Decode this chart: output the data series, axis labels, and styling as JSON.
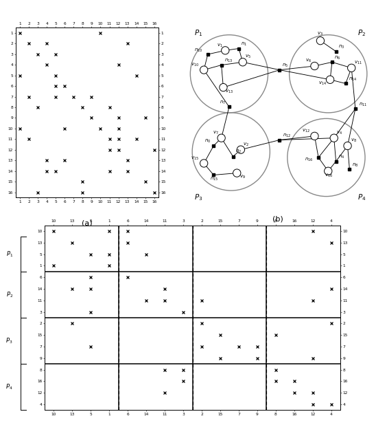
{
  "matrix_a_nonzeros": [
    [
      1,
      1
    ],
    [
      1,
      10
    ],
    [
      2,
      2
    ],
    [
      2,
      4
    ],
    [
      2,
      13
    ],
    [
      3,
      3
    ],
    [
      3,
      5
    ],
    [
      4,
      4
    ],
    [
      4,
      12
    ],
    [
      5,
      1
    ],
    [
      5,
      5
    ],
    [
      5,
      14
    ],
    [
      6,
      5
    ],
    [
      6,
      6
    ],
    [
      7,
      2
    ],
    [
      7,
      5
    ],
    [
      7,
      7
    ],
    [
      7,
      9
    ],
    [
      8,
      3
    ],
    [
      8,
      8
    ],
    [
      8,
      11
    ],
    [
      9,
      9
    ],
    [
      9,
      12
    ],
    [
      9,
      15
    ],
    [
      10,
      1
    ],
    [
      10,
      6
    ],
    [
      10,
      10
    ],
    [
      10,
      12
    ],
    [
      11,
      2
    ],
    [
      11,
      11
    ],
    [
      11,
      12
    ],
    [
      11,
      14
    ],
    [
      12,
      11
    ],
    [
      12,
      12
    ],
    [
      12,
      16
    ],
    [
      13,
      4
    ],
    [
      13,
      6
    ],
    [
      13,
      13
    ],
    [
      14,
      4
    ],
    [
      14,
      5
    ],
    [
      14,
      11
    ],
    [
      14,
      13
    ],
    [
      15,
      8
    ],
    [
      15,
      15
    ],
    [
      16,
      3
    ],
    [
      16,
      8
    ],
    [
      16,
      16
    ]
  ],
  "col_order": [
    10,
    13,
    5,
    1,
    6,
    14,
    11,
    3,
    2,
    15,
    7,
    9,
    8,
    16,
    12,
    4
  ],
  "row_order": [
    10,
    13,
    5,
    1,
    6,
    14,
    11,
    3,
    2,
    15,
    7,
    9,
    8,
    16,
    12,
    4
  ],
  "background": "#ffffff"
}
